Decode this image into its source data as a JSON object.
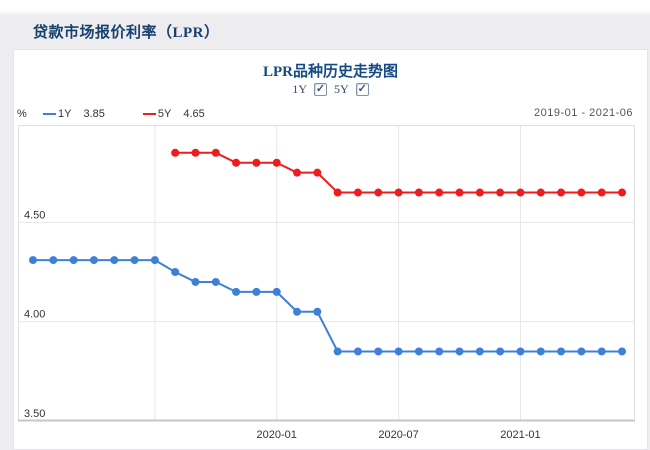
{
  "page": {
    "header_title": "贷款市场报价利率（LPR）"
  },
  "panel": {
    "chart_title": "LPR品种历史走势图",
    "checkboxes": [
      {
        "label": "1Y",
        "checked": true
      },
      {
        "label": "5Y",
        "checked": true
      }
    ],
    "legend": {
      "unit": "%",
      "items": [
        {
          "name": "1Y",
          "value": "3.85",
          "color": "#3e80d8"
        },
        {
          "name": "5Y",
          "value": "4.65",
          "color": "#ee1c1c"
        }
      ]
    },
    "date_range": "2019-01 - 2021-06"
  },
  "chart_data": {
    "type": "line",
    "title": "LPR品种历史走势图",
    "x_months": [
      "2019-01",
      "2019-02",
      "2019-03",
      "2019-04",
      "2019-05",
      "2019-06",
      "2019-07",
      "2019-08",
      "2019-09",
      "2019-10",
      "2019-11",
      "2019-12",
      "2020-01",
      "2020-02",
      "2020-03",
      "2020-04",
      "2020-05",
      "2020-06",
      "2020-07",
      "2020-08",
      "2020-09",
      "2020-10",
      "2020-11",
      "2020-12",
      "2021-01",
      "2021-02",
      "2021-03",
      "2021-04",
      "2021-05",
      "2021-06"
    ],
    "series": [
      {
        "name": "1Y",
        "color": "#3e80d8",
        "start_index": 0,
        "values": [
          4.31,
          4.31,
          4.31,
          4.31,
          4.31,
          4.31,
          4.31,
          4.25,
          4.2,
          4.2,
          4.15,
          4.15,
          4.15,
          4.05,
          4.05,
          3.85,
          3.85,
          3.85,
          3.85,
          3.85,
          3.85,
          3.85,
          3.85,
          3.85,
          3.85,
          3.85,
          3.85,
          3.85,
          3.85,
          3.85
        ]
      },
      {
        "name": "5Y",
        "color": "#ee1c1c",
        "start_index": 7,
        "values": [
          4.85,
          4.85,
          4.85,
          4.8,
          4.8,
          4.8,
          4.75,
          4.75,
          4.65,
          4.65,
          4.65,
          4.65,
          4.65,
          4.65,
          4.65,
          4.65,
          4.65,
          4.65,
          4.65,
          4.65,
          4.65,
          4.65,
          4.65
        ]
      }
    ],
    "ylabel": "%",
    "ylim": [
      3.5,
      4.99
    ],
    "grid": true,
    "yticks": [
      {
        "value": 4.5,
        "label": "4.50"
      },
      {
        "value": 4.0,
        "label": "4.00"
      },
      {
        "value": 3.5,
        "label": "3.50"
      }
    ],
    "xticks": [
      {
        "index": 12,
        "label": "2020-01"
      },
      {
        "index": 18,
        "label": "2020-07"
      },
      {
        "index": 24,
        "label": "2021-01"
      }
    ],
    "grid_x_indices": [
      6,
      12,
      18,
      24
    ],
    "colors": {
      "grid": "#e7e7e7",
      "plot_border": "#e0e0e0",
      "axis_bottom": "#c6c6c6",
      "tick_text": "#333333"
    }
  }
}
